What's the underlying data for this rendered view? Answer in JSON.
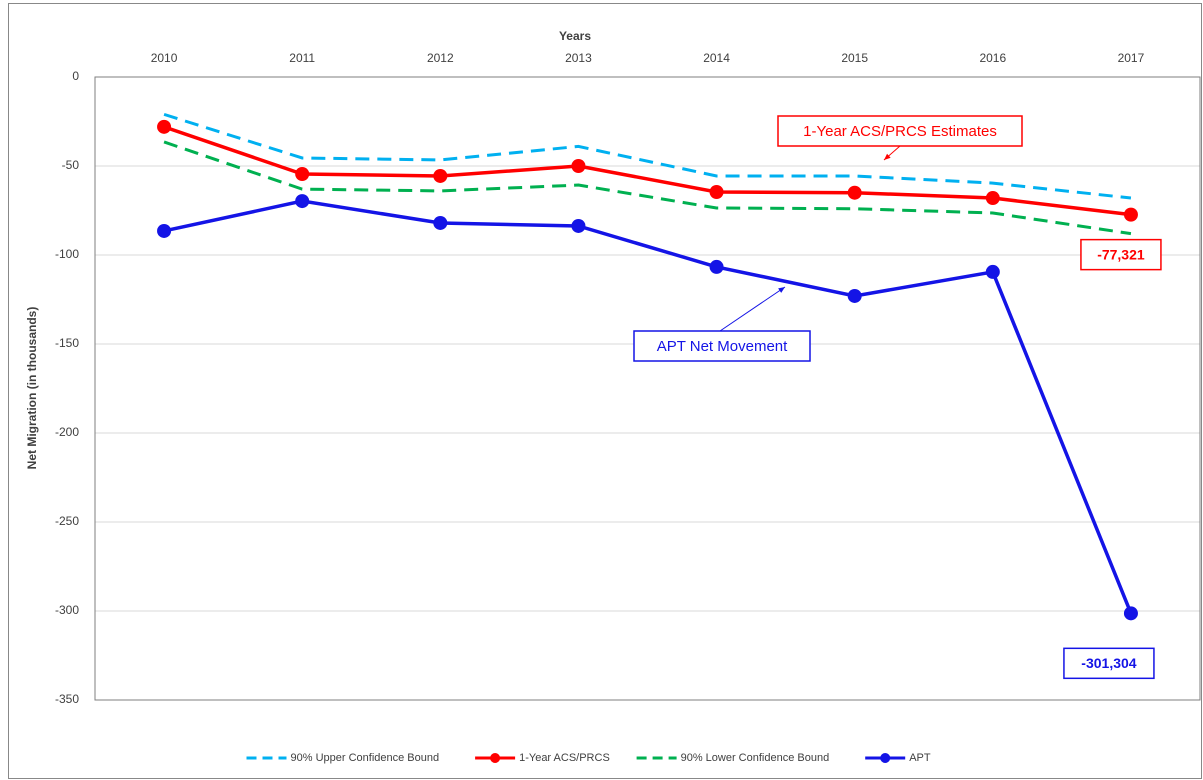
{
  "chart_data": {
    "type": "line",
    "x_label": "Years",
    "y_label": "Net Migration (in thousands)",
    "categories": [
      "2010",
      "2011",
      "2012",
      "2013",
      "2014",
      "2015",
      "2016",
      "2017"
    ],
    "ylim": [
      -350,
      0
    ],
    "yticks": [
      0,
      -50,
      -100,
      -150,
      -200,
      -250,
      -300,
      -350
    ],
    "grid": true,
    "legend": "bottom",
    "series": [
      {
        "name": "90% Upper Confidence Bound",
        "color": "#00b0f0",
        "dashed": true,
        "markers": false,
        "values": [
          -21,
          -45.5,
          -46.6,
          -39,
          -55.6,
          -55.6,
          -59.6,
          -68
        ]
      },
      {
        "name": "1-Year ACS/PRCS",
        "color": "#ff0000",
        "dashed": false,
        "markers": true,
        "values": [
          -28,
          -54.5,
          -55.6,
          -50,
          -64.6,
          -65,
          -68,
          -77.321
        ],
        "value_labels": [
          null,
          null,
          null,
          null,
          null,
          null,
          null,
          "-77,321"
        ]
      },
      {
        "name": "90% Lower Confidence Bound",
        "color": "#00b050",
        "dashed": true,
        "markers": false,
        "values": [
          -36.5,
          -63,
          -64,
          -60.7,
          -73.6,
          -74,
          -76.4,
          -88
        ]
      },
      {
        "name": "APT",
        "color": "#1414e6",
        "dashed": false,
        "markers": true,
        "values": [
          -86.5,
          -69.7,
          -82,
          -83.7,
          -106.7,
          -123,
          -109.5,
          -301.304
        ],
        "value_labels": [
          null,
          null,
          null,
          null,
          null,
          null,
          null,
          "-301,304"
        ]
      }
    ],
    "annotations": [
      {
        "text": "1-Year ACS/PRCS Estimates",
        "color": "#ff0000"
      },
      {
        "text": "APT Net Movement",
        "color": "#1414e6"
      }
    ]
  }
}
